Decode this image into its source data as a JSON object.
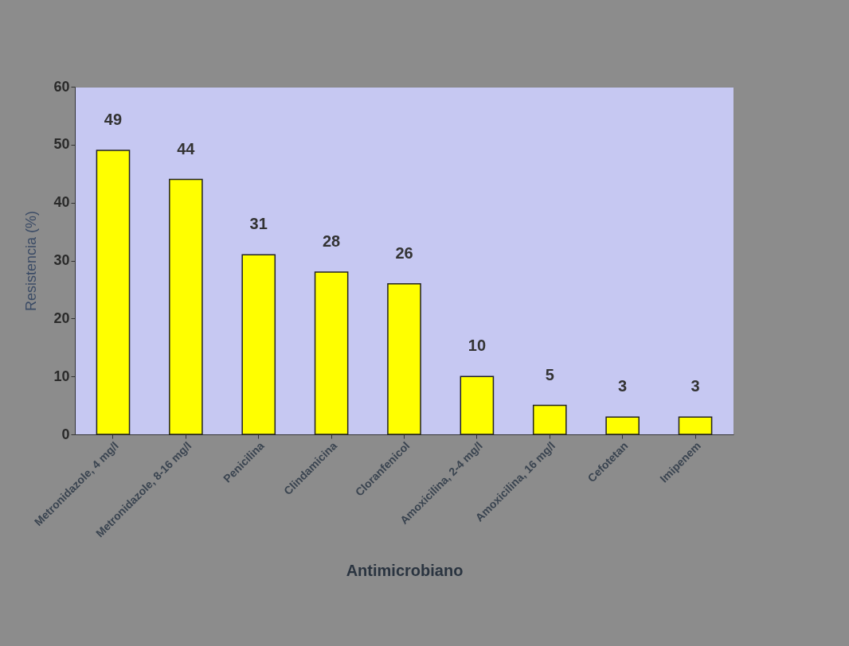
{
  "chart_data": {
    "type": "bar",
    "xlabel": "Antimicrobiano",
    "ylabel": "Resistencia (%)",
    "categories": [
      "Metronidazole, 4 mg/l",
      "Metronidazole, 8-16 mg/l",
      "Penicilina",
      "Clindamicina",
      "Cloranfenicol",
      "Amoxicilina, 2-4 mg/l",
      "Amoxicilina, 16 mg/l",
      "Cefotetan",
      "Imipenem"
    ],
    "values": [
      49,
      44,
      31,
      28,
      26,
      10,
      5,
      3,
      3
    ],
    "color": "#ffff00",
    "ylim": [
      0,
      60
    ],
    "yticks": [
      0,
      10,
      20,
      30,
      40,
      50,
      60
    ],
    "grid": false,
    "data_labels": true
  }
}
